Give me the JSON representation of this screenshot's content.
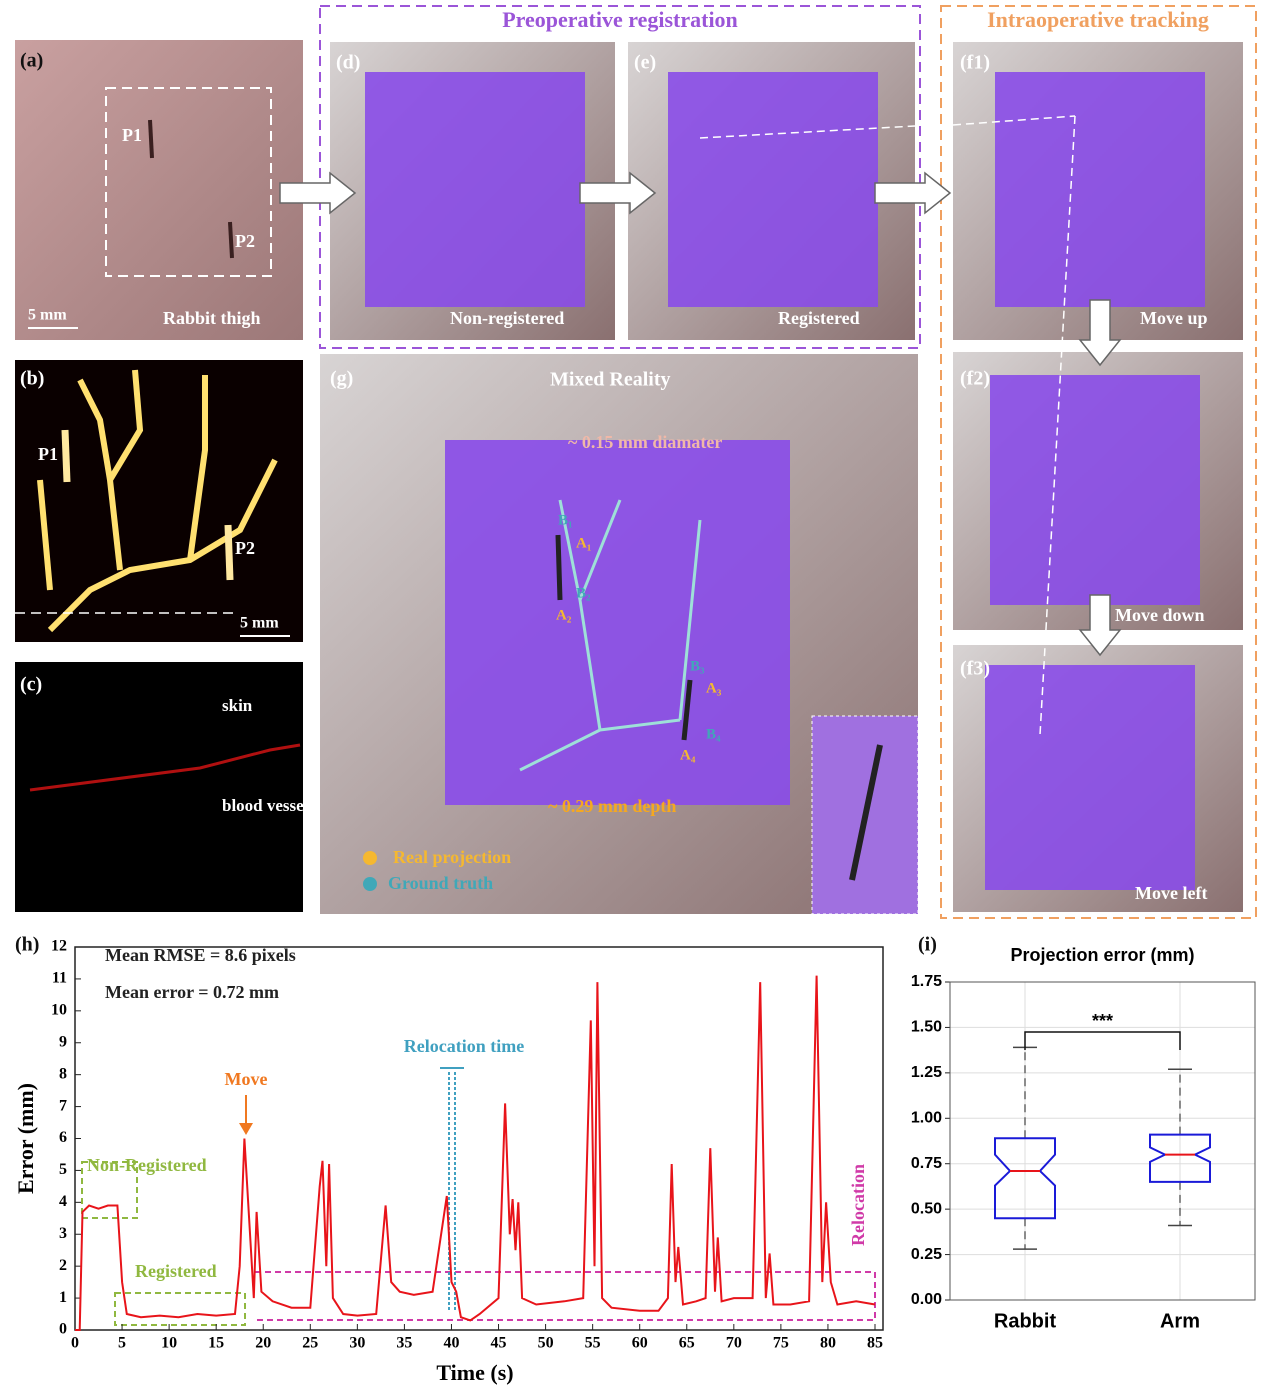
{
  "group_titles": {
    "preop": "Preoperative registration",
    "intraop": "Intraoperative tracking"
  },
  "panels": {
    "a": {
      "label": "(a)",
      "p1": "P1",
      "p2": "P2",
      "scale": "5 mm",
      "caption": "Rabbit  thigh"
    },
    "b": {
      "label": "(b)",
      "p1": "P1",
      "p2": "P2",
      "scale": "5 mm"
    },
    "c": {
      "label": "(c)",
      "skin": "skin",
      "vessel": "blood vessel"
    },
    "d": {
      "label": "(d)",
      "caption": "Non-registered"
    },
    "e": {
      "label": "(e)",
      "caption": "Registered"
    },
    "f1": {
      "label": "(f1)",
      "caption": "Move up"
    },
    "f2": {
      "label": "(f2)",
      "caption": "Move down"
    },
    "f3": {
      "label": "(f3)",
      "caption": "Move left"
    },
    "g": {
      "label": "(g)",
      "title": "Mixed Reality",
      "diameter": "~ 0.15 mm diamater",
      "depth": "~ 0.29 mm depth",
      "legend_real": "Real projection",
      "legend_truth": "Ground truth",
      "points": [
        "B₁",
        "A₁",
        "B₂",
        "A₂",
        "B₃",
        "A₃",
        "B₄",
        "A₄"
      ]
    },
    "h": {
      "label": "(h)"
    },
    "i": {
      "label": "(i)"
    }
  },
  "chart_data": [
    {
      "type": "line",
      "xlabel": "Time (s)",
      "ylabel": "Error (mm)",
      "color": "#e8141a",
      "annotations": [
        "Mean RMSE = 8.6 pixels",
        "Mean error = 0.72 mm",
        "Move",
        "Relocation time",
        "Non-Registered",
        "Registered",
        "Relocation"
      ],
      "x": [
        0,
        0.5,
        0.8,
        1.5,
        2.5,
        3.5,
        4.5,
        5,
        5.5,
        7,
        9,
        11,
        13,
        15,
        17,
        17.5,
        18,
        18.5,
        19,
        19.3,
        19.8,
        21,
        23,
        25,
        26,
        26.3,
        26.7,
        27,
        27.4,
        28.5,
        30,
        32,
        33,
        33.6,
        34.5,
        36,
        38,
        39.5,
        40,
        40.5,
        41,
        42,
        43,
        45,
        45.7,
        46.2,
        46.5,
        46.8,
        47.1,
        47.5,
        49,
        52,
        54,
        54.8,
        55.2,
        55.5,
        56,
        57,
        60,
        62,
        63,
        63.4,
        63.8,
        64.1,
        64.6,
        66,
        67,
        67.5,
        68,
        68.3,
        68.7,
        70,
        72,
        72.8,
        73.4,
        73.8,
        74.2,
        76,
        78,
        78.8,
        79.4,
        79.8,
        80.3,
        81,
        83,
        85
      ],
      "values": [
        0,
        0,
        3.7,
        3.9,
        3.8,
        3.9,
        3.9,
        1.5,
        0.5,
        0.4,
        0.45,
        0.4,
        0.5,
        0.45,
        0.5,
        2,
        6.0,
        3.5,
        1,
        3.7,
        1.2,
        0.9,
        0.7,
        0.7,
        4.5,
        5.3,
        2,
        5.2,
        1,
        0.5,
        0.45,
        0.5,
        3.9,
        1.5,
        1.2,
        1.1,
        1.2,
        4.2,
        1.5,
        1.2,
        0.4,
        0.3,
        0.5,
        1,
        7.1,
        3,
        4.1,
        2.5,
        4,
        1,
        0.8,
        0.9,
        1,
        9.7,
        2,
        10.9,
        1,
        0.7,
        0.6,
        0.6,
        1,
        5.2,
        1.5,
        2.6,
        0.8,
        0.9,
        1,
        5.7,
        1.2,
        2.9,
        0.9,
        1,
        1,
        10.9,
        1,
        2.4,
        0.8,
        0.8,
        0.9,
        11.1,
        1.5,
        4,
        1.5,
        0.8,
        0.9,
        0.8
      ],
      "xlim": [
        0,
        85
      ],
      "xticks": [
        0,
        5,
        10,
        15,
        20,
        25,
        30,
        35,
        40,
        45,
        50,
        55,
        60,
        65,
        70,
        75,
        80,
        85
      ],
      "ylim": [
        0,
        12
      ],
      "yticks": [
        0,
        1,
        2,
        3,
        4,
        5,
        6,
        7,
        8,
        9,
        10,
        11,
        12
      ]
    },
    {
      "type": "box",
      "title": "Projection error (mm)",
      "categories": [
        "Rabbit",
        "Arm"
      ],
      "annotation": "***",
      "grid": true,
      "box_color": "#1a1ad8",
      "median_color": "#e8141a",
      "stats": [
        {
          "min": 0.28,
          "q1": 0.45,
          "notch_low": 0.63,
          "median": 0.71,
          "notch_high": 0.8,
          "q3": 0.89,
          "max": 1.39
        },
        {
          "min": 0.41,
          "q1": 0.65,
          "notch_low": 0.76,
          "median": 0.8,
          "notch_high": 0.84,
          "q3": 0.91,
          "max": 1.27
        }
      ],
      "ylim": [
        0,
        1.75
      ],
      "yticks": [
        {
          "value": 0,
          "label": "0.00"
        },
        0.25,
        {
          "value": 0.5,
          "label": "0.50"
        },
        0.75,
        {
          "value": 1,
          "label": "1.00"
        },
        1.25,
        {
          "value": 1.5,
          "label": "1.50"
        },
        1.75
      ]
    }
  ]
}
